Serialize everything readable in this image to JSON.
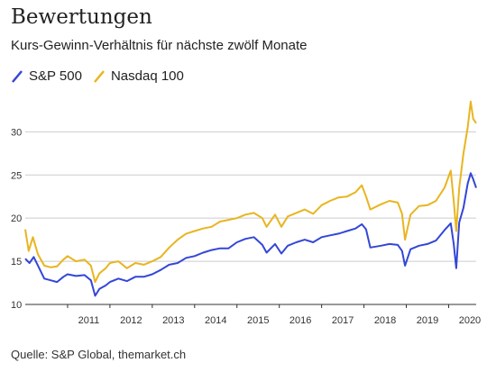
{
  "header": {
    "title": "Bewertungen",
    "subtitle": "Kurs-Gewinn-Verhältnis für nächste zwölf Monate"
  },
  "footer": {
    "source": "Quelle: S&P Global, themarket.ch"
  },
  "colors": {
    "sp500": "#3347d6",
    "nasdaq": "#e8b520",
    "grid": "#cccccc",
    "baseline": "#333333"
  },
  "chart_data": {
    "type": "line",
    "title": "Bewertungen",
    "subtitle": "Kurs-Gewinn-Verhältnis für nächste zwölf Monate",
    "xlabel": "",
    "ylabel": "",
    "xlim": [
      2010.0,
      2020.65
    ],
    "ylim": [
      10,
      34
    ],
    "yticks": [
      10,
      15,
      20,
      25,
      30
    ],
    "xticks": [
      "2011",
      "2012",
      "2013",
      "2014",
      "2015",
      "2016",
      "2017",
      "2018",
      "2019",
      "2020"
    ],
    "grid": true,
    "legend": "top-left",
    "series": [
      {
        "name": "S&P 500",
        "color": "#3347d6",
        "x": [
          2010.0,
          2010.1,
          2010.2,
          2010.3,
          2010.45,
          2010.6,
          2010.75,
          2010.9,
          2011.0,
          2011.2,
          2011.4,
          2011.55,
          2011.65,
          2011.75,
          2011.9,
          2012.0,
          2012.2,
          2012.4,
          2012.6,
          2012.8,
          2013.0,
          2013.2,
          2013.4,
          2013.6,
          2013.8,
          2014.0,
          2014.2,
          2014.4,
          2014.6,
          2014.8,
          2015.0,
          2015.2,
          2015.4,
          2015.6,
          2015.7,
          2015.9,
          2016.05,
          2016.2,
          2016.4,
          2016.6,
          2016.8,
          2017.0,
          2017.2,
          2017.4,
          2017.6,
          2017.8,
          2017.95,
          2018.05,
          2018.15,
          2018.4,
          2018.6,
          2018.8,
          2018.9,
          2018.97,
          2019.1,
          2019.3,
          2019.5,
          2019.7,
          2019.9,
          2020.05,
          2020.12,
          2020.18,
          2020.25,
          2020.35,
          2020.45,
          2020.52,
          2020.58,
          2020.65
        ],
        "values": [
          15.3,
          14.8,
          15.5,
          14.5,
          13.0,
          12.8,
          12.6,
          13.2,
          13.5,
          13.3,
          13.4,
          12.8,
          11.0,
          11.8,
          12.2,
          12.6,
          13.0,
          12.7,
          13.2,
          13.2,
          13.5,
          14.0,
          14.6,
          14.8,
          15.4,
          15.6,
          16.0,
          16.3,
          16.5,
          16.5,
          17.2,
          17.6,
          17.8,
          16.9,
          16.0,
          17.0,
          15.9,
          16.8,
          17.2,
          17.5,
          17.2,
          17.8,
          18.0,
          18.2,
          18.5,
          18.8,
          19.3,
          18.7,
          16.6,
          16.8,
          17.0,
          16.9,
          16.2,
          14.5,
          16.4,
          16.8,
          17.0,
          17.4,
          18.6,
          19.4,
          17.0,
          14.2,
          19.5,
          21.2,
          24.0,
          25.2,
          24.5,
          23.5
        ]
      },
      {
        "name": "Nasdaq 100",
        "color": "#e8b520",
        "x": [
          2010.0,
          2010.08,
          2010.18,
          2010.3,
          2010.45,
          2010.6,
          2010.75,
          2010.9,
          2011.0,
          2011.2,
          2011.4,
          2011.55,
          2011.65,
          2011.75,
          2011.9,
          2012.0,
          2012.2,
          2012.4,
          2012.6,
          2012.8,
          2013.0,
          2013.2,
          2013.4,
          2013.6,
          2013.8,
          2014.0,
          2014.2,
          2014.4,
          2014.6,
          2014.8,
          2015.0,
          2015.2,
          2015.4,
          2015.6,
          2015.7,
          2015.9,
          2016.05,
          2016.2,
          2016.4,
          2016.6,
          2016.8,
          2017.0,
          2017.2,
          2017.4,
          2017.6,
          2017.8,
          2017.95,
          2018.05,
          2018.15,
          2018.4,
          2018.6,
          2018.8,
          2018.9,
          2018.97,
          2019.1,
          2019.3,
          2019.5,
          2019.7,
          2019.9,
          2020.05,
          2020.12,
          2020.18,
          2020.25,
          2020.35,
          2020.45,
          2020.52,
          2020.58,
          2020.65
        ],
        "values": [
          18.7,
          16.2,
          17.8,
          15.8,
          14.5,
          14.3,
          14.4,
          15.2,
          15.6,
          15.0,
          15.2,
          14.5,
          12.6,
          13.6,
          14.2,
          14.8,
          15.0,
          14.2,
          14.8,
          14.6,
          15.0,
          15.5,
          16.6,
          17.5,
          18.2,
          18.5,
          18.8,
          19.0,
          19.6,
          19.8,
          20.0,
          20.4,
          20.6,
          20.0,
          19.0,
          20.4,
          19.0,
          20.2,
          20.6,
          21.0,
          20.5,
          21.5,
          22.0,
          22.4,
          22.5,
          23.0,
          23.8,
          22.5,
          21.0,
          21.6,
          22.0,
          21.8,
          20.5,
          17.5,
          20.4,
          21.4,
          21.5,
          22.0,
          23.5,
          25.5,
          22.0,
          18.5,
          23.5,
          27.5,
          30.5,
          33.5,
          31.5,
          31.0
        ]
      }
    ]
  }
}
